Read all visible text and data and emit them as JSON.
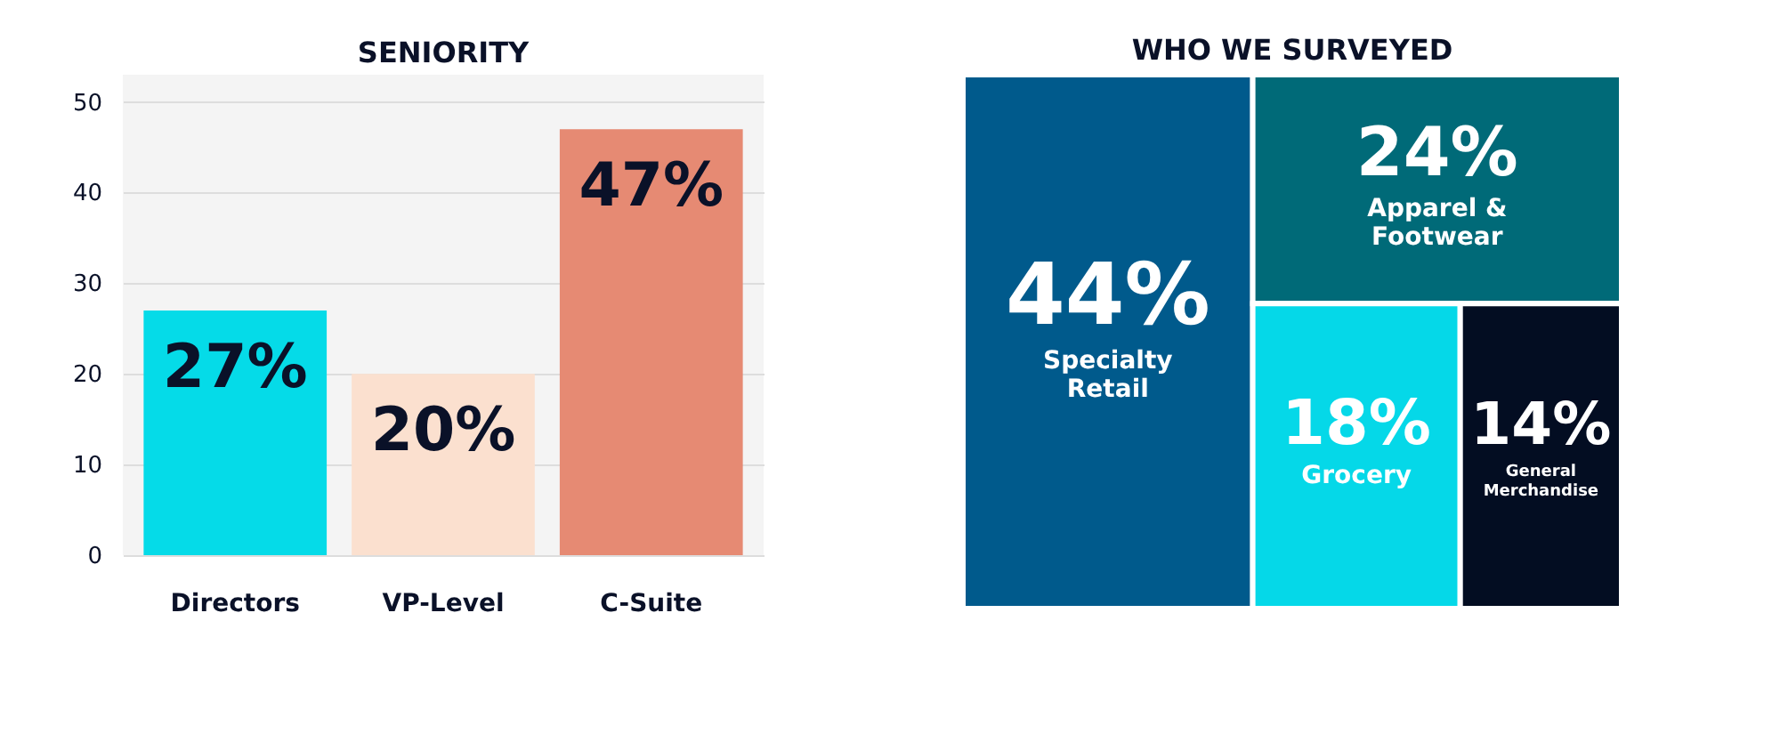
{
  "chart_data": [
    {
      "type": "bar",
      "title": "SENIORITY",
      "categories": [
        "Directors",
        "VP-Level",
        "C-Suite"
      ],
      "values": [
        27,
        20,
        47
      ],
      "colors": [
        "#05dbe8",
        "#fbe0cf",
        "#e68a73"
      ],
      "ylim": [
        0,
        53
      ],
      "yticks": [
        0,
        10,
        20,
        30,
        40,
        50
      ],
      "grid": "y",
      "value_labels": [
        "27%",
        "20%",
        "47%"
      ]
    },
    {
      "type": "other",
      "title": "WHO WE SURVEYED",
      "categories": [
        "Specialty Retail",
        "Apparel & Footwear",
        "Grocery",
        "General Merchandise"
      ],
      "values": [
        44,
        24,
        18,
        14
      ],
      "colors": [
        "#005a8c",
        "#006a78",
        "#05d8e8",
        "#030d22"
      ],
      "value_labels": [
        "44%",
        "24%",
        "18%",
        "14%"
      ]
    }
  ]
}
